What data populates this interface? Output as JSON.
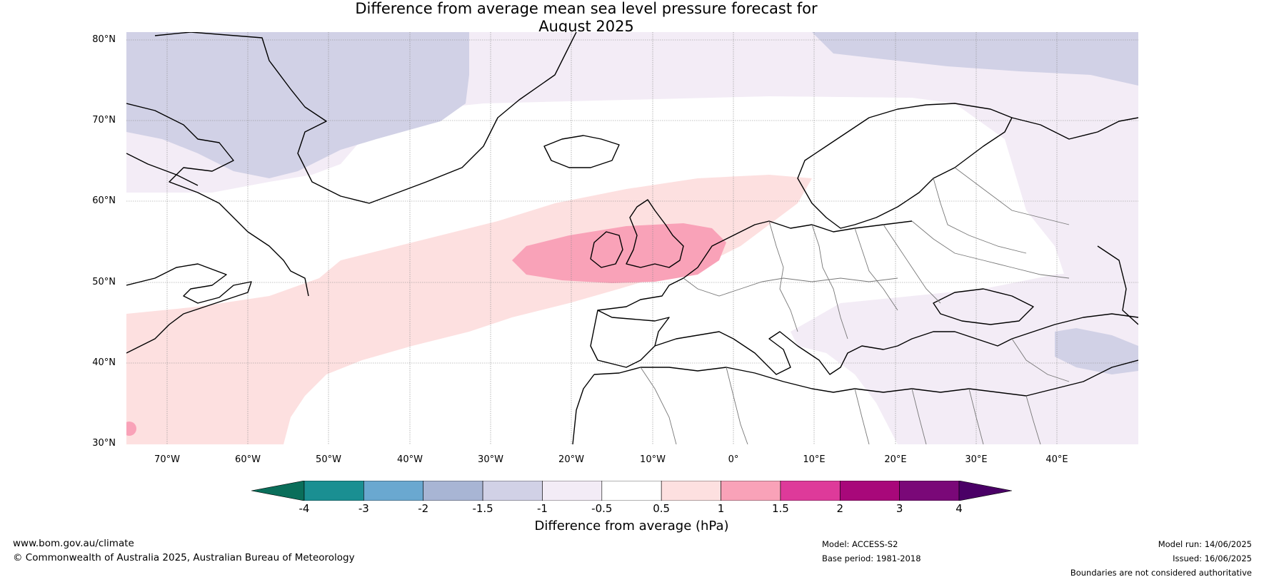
{
  "title_line1": "Difference from average mean sea level pressure forecast for",
  "title_line2": "August 2025",
  "latitudes": [
    "80°N",
    "70°N",
    "60°N",
    "50°N",
    "40°N",
    "30°N"
  ],
  "longitudes": [
    "70°W",
    "60°W",
    "50°W",
    "40°W",
    "30°W",
    "20°W",
    "10°W",
    "0°",
    "10°E",
    "20°E",
    "30°E",
    "40°E"
  ],
  "map_extent": {
    "lon": [
      -75,
      50
    ],
    "lat": [
      30,
      81
    ]
  },
  "colorbar": {
    "label": "Difference from average (hPa)",
    "ticks": [
      "-4",
      "-3",
      "-2",
      "-1.5",
      "-1",
      "-0.5",
      "0.5",
      "1",
      "1.5",
      "2",
      "3",
      "4"
    ],
    "colors": [
      "#1a8f92",
      "#6aa8d0",
      "#a8b5d4",
      "#d1d1e6",
      "#f3ecf6",
      "#ffffff",
      "#fde0e0",
      "#f9a2b8",
      "#de3a9a",
      "#a8087a",
      "#7a0878"
    ],
    "extend_low_color": "#0a6e5a",
    "extend_high_color": "#4a0066"
  },
  "footer": {
    "url": "www.bom.gov.au/climate",
    "copyright": "© Commonwealth of Australia 2025, Australian Bureau of Meteorology",
    "model": "Model: ACCESS-S2",
    "base_period": "Base period: 1981-2018",
    "model_run": "Model run: 14/06/2025",
    "issued": "Issued: 16/06/2025",
    "disclaimer": "Boundaries are not considered authoritative"
  }
}
